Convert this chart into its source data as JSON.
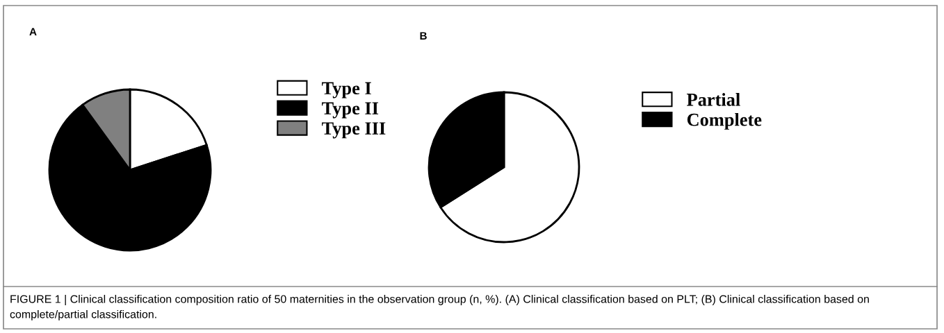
{
  "chart_data": [
    {
      "type": "pie",
      "title": "A",
      "categories": [
        "Type I",
        "Type II",
        "Type III"
      ],
      "values": [
        20,
        70,
        10
      ],
      "colors": [
        "#ffffff",
        "#000000",
        "#808080"
      ],
      "legend": "right",
      "annotations": [
        "FIGURE 1 | Clinical classification composition ratio of 50 maternities in the observation group (n, %). (A) Clinical classification based on PLT; (B) Clinical classification based on complete/partial classification."
      ]
    },
    {
      "type": "pie",
      "title": "B",
      "categories": [
        "Partial",
        "Complete"
      ],
      "values": [
        66,
        34
      ],
      "colors": [
        "#ffffff",
        "#000000"
      ],
      "legend": "right"
    }
  ]
}
